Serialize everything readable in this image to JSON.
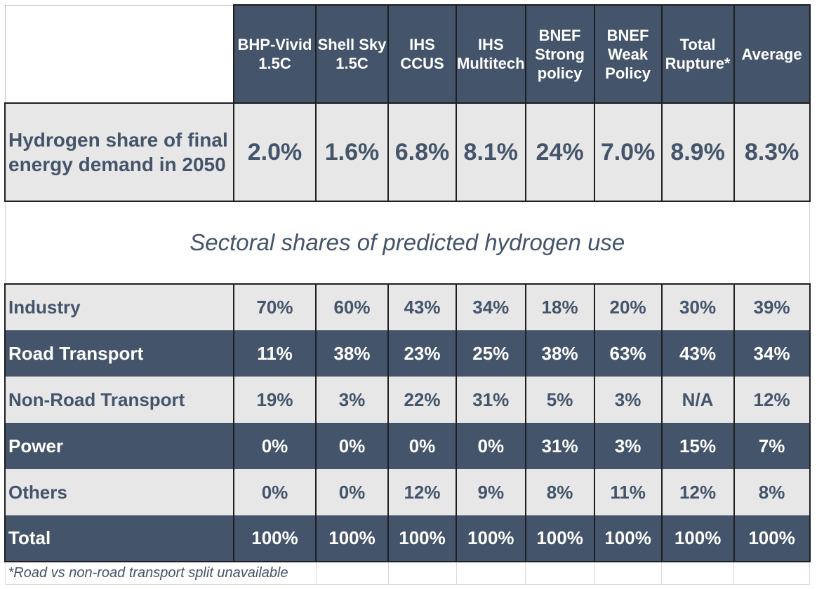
{
  "columns": [
    {
      "line1": "BHP-Vivid",
      "line2": "1.5C",
      "line3": ""
    },
    {
      "line1": "Shell Sky",
      "line2": "1.5C",
      "line3": ""
    },
    {
      "line1": "IHS",
      "line2": "CCUS",
      "line3": ""
    },
    {
      "line1": "IHS",
      "line2": "Multitech",
      "line3": ""
    },
    {
      "line1": "BNEF",
      "line2": "Strong",
      "line3": "policy"
    },
    {
      "line1": "BNEF",
      "line2": "Weak",
      "line3": "Policy"
    },
    {
      "line1": "Total",
      "line2": "Rupture*",
      "line3": ""
    },
    {
      "line1": "Average",
      "line2": "",
      "line3": ""
    }
  ],
  "hydrogen_share": {
    "label_line1": "Hydrogen share of final",
    "label_line2": "energy demand in 2050",
    "values": [
      "2.0%",
      "1.6%",
      "6.8%",
      "8.1%",
      "24%",
      "7.0%",
      "8.9%",
      "8.3%"
    ]
  },
  "subtitle": "Sectoral shares of predicted hydrogen use",
  "sectors": [
    {
      "label": "Industry",
      "values": [
        "70%",
        "60%",
        "43%",
        "34%",
        "18%",
        "20%",
        "30%",
        "39%"
      ]
    },
    {
      "label": "Road Transport",
      "values": [
        "11%",
        "38%",
        "23%",
        "25%",
        "38%",
        "63%",
        "43%",
        "34%"
      ]
    },
    {
      "label": "Non-Road Transport",
      "values": [
        "19%",
        "3%",
        "22%",
        "31%",
        "5%",
        "3%",
        "N/A",
        "12%"
      ]
    },
    {
      "label": "Power",
      "values": [
        "0%",
        "0%",
        "0%",
        "0%",
        "31%",
        "3%",
        "15%",
        "7%"
      ]
    },
    {
      "label": "Others",
      "values": [
        "0%",
        "0%",
        "12%",
        "9%",
        "8%",
        "11%",
        "12%",
        "8%"
      ]
    },
    {
      "label": "Total",
      "values": [
        "100%",
        "100%",
        "100%",
        "100%",
        "100%",
        "100%",
        "100%",
        "100%"
      ]
    }
  ],
  "footnote": "*Road vs non-road transport split unavailable",
  "colors": {
    "dark": "#44546a",
    "light": "#e7e7e7",
    "border": "#1f1f1f"
  }
}
